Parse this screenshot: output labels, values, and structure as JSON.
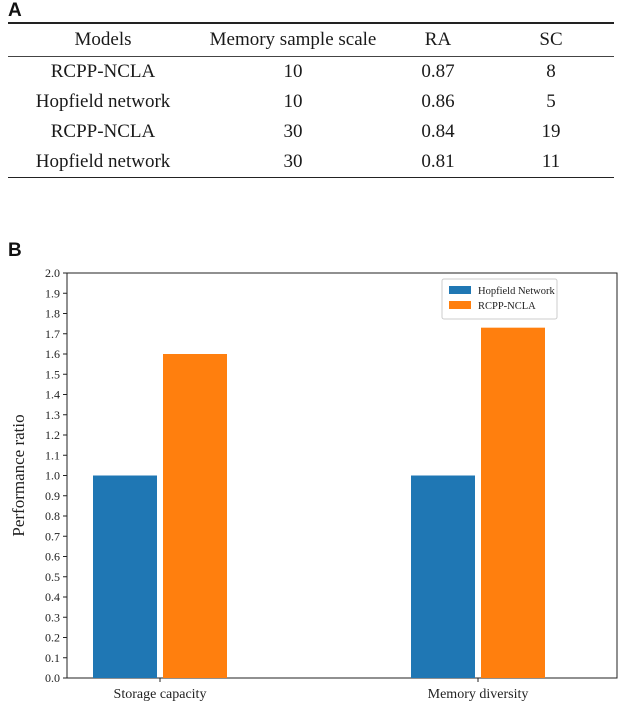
{
  "panels": {
    "a": "A",
    "b": "B"
  },
  "table": {
    "headers": [
      "Models",
      "Memory sample scale",
      "RA",
      "SC"
    ],
    "rows": [
      [
        "RCPP-NCLA",
        "10",
        "0.87",
        "8"
      ],
      [
        "Hopfield network",
        "10",
        "0.86",
        "5"
      ],
      [
        "RCPP-NCLA",
        "30",
        "0.84",
        "19"
      ],
      [
        "Hopfield network",
        "30",
        "0.81",
        "11"
      ]
    ]
  },
  "chart_data": {
    "type": "bar",
    "title": "",
    "xlabel": "",
    "ylabel": "Performance ratio",
    "categories": [
      "Storage capacity",
      "Memory diversity"
    ],
    "series": [
      {
        "name": "Hopfield Network",
        "color": "#1f77b4",
        "values": [
          1.0,
          1.0
        ]
      },
      {
        "name": "RCPP-NCLA",
        "color": "#ff7f0e",
        "values": [
          1.6,
          1.73
        ]
      }
    ],
    "ylim": [
      0.0,
      2.0
    ],
    "yticks": [
      "0.0",
      "0.1",
      "0.2",
      "0.3",
      "0.4",
      "0.5",
      "0.6",
      "0.7",
      "0.8",
      "0.9",
      "1.0",
      "1.1",
      "1.2",
      "1.3",
      "1.4",
      "1.5",
      "1.6",
      "1.7",
      "1.8",
      "1.9",
      "2.0"
    ],
    "legend": "top-right",
    "grid": false
  }
}
